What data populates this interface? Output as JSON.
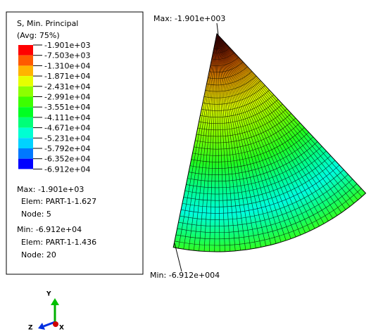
{
  "legend": {
    "title": "S, Min. Principal",
    "subtitle": "(Avg: 75%)",
    "labels": [
      "-1.901e+03",
      "-7.503e+03",
      "-1.310e+04",
      "-1.871e+04",
      "-2.431e+04",
      "-2.991e+04",
      "-3.551e+04",
      "-4.111e+04",
      "-4.671e+04",
      "-5.231e+04",
      "-5.792e+04",
      "-6.352e+04",
      "-6.912e+04"
    ],
    "max": {
      "value": "Max: -1.901e+03",
      "elem": "Elem: PART-1-1.627",
      "node": "Node: 5"
    },
    "min": {
      "value": "Min: -6.912e+04",
      "elem": "Elem: PART-1-1.436",
      "node": "Node: 20"
    }
  },
  "annotations": {
    "max": "Max: -1.901e+003",
    "min": "Min: -6.912e+004"
  },
  "triad": {
    "y": "Y",
    "z": "Z",
    "x": "X"
  }
}
